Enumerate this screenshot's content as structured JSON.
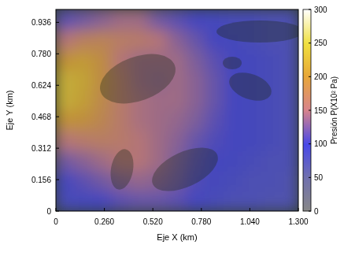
{
  "chart_data": {
    "type": "heatmap",
    "x_label": "Eje X (km)",
    "y_label": "Eje Y (km)",
    "xlim": [
      0,
      1.3
    ],
    "ylim": [
      0,
      1.0
    ],
    "xticks": [
      0,
      {
        "value": 0.26,
        "label": "0.260"
      },
      {
        "value": 0.52,
        "label": "0.520"
      },
      {
        "value": 0.78,
        "label": "0.780"
      },
      {
        "value": 1.04,
        "label": "1.040"
      },
      {
        "value": 1.3,
        "label": "1.300"
      }
    ],
    "yticks": [
      0,
      0.156,
      0.312,
      0.468,
      0.624,
      {
        "value": 0.78,
        "label": "0.780"
      },
      0.936
    ],
    "x_edges": [
      0,
      0.1,
      0.2,
      0.3,
      0.4,
      0.5,
      0.6,
      0.7,
      0.8,
      0.9,
      1.0,
      1.1,
      1.2,
      1.3
    ],
    "y_edges": [
      0,
      0.1,
      0.2,
      0.3,
      0.4,
      0.5,
      0.6,
      0.7,
      0.8,
      0.9,
      1.0
    ],
    "cells": [
      [
        90,
        95,
        100,
        110,
        115,
        115,
        110,
        100,
        90,
        85,
        85,
        80,
        80
      ],
      [
        100,
        110,
        120,
        130,
        135,
        130,
        120,
        105,
        95,
        90,
        85,
        85,
        80
      ],
      [
        120,
        130,
        140,
        150,
        150,
        140,
        125,
        110,
        100,
        95,
        90,
        85,
        85
      ],
      [
        150,
        160,
        165,
        160,
        150,
        140,
        130,
        115,
        105,
        100,
        95,
        90,
        85
      ],
      [
        200,
        195,
        180,
        160,
        145,
        140,
        135,
        125,
        110,
        100,
        95,
        90,
        85
      ],
      [
        230,
        215,
        185,
        160,
        145,
        140,
        140,
        130,
        115,
        100,
        95,
        90,
        85
      ],
      [
        230,
        220,
        190,
        160,
        140,
        135,
        140,
        130,
        115,
        100,
        95,
        90,
        85
      ],
      [
        200,
        210,
        190,
        150,
        140,
        140,
        140,
        125,
        110,
        100,
        95,
        90,
        85
      ],
      [
        150,
        170,
        175,
        165,
        160,
        150,
        130,
        115,
        100,
        95,
        90,
        85,
        85
      ],
      [
        110,
        120,
        130,
        140,
        140,
        120,
        110,
        100,
        95,
        90,
        90,
        85,
        85
      ]
    ],
    "colorbar": {
      "label": "Presión P(X10² Pa)",
      "range": [
        0,
        300
      ],
      "ticks": [
        0,
        50,
        100,
        150,
        200,
        250,
        300
      ]
    }
  }
}
